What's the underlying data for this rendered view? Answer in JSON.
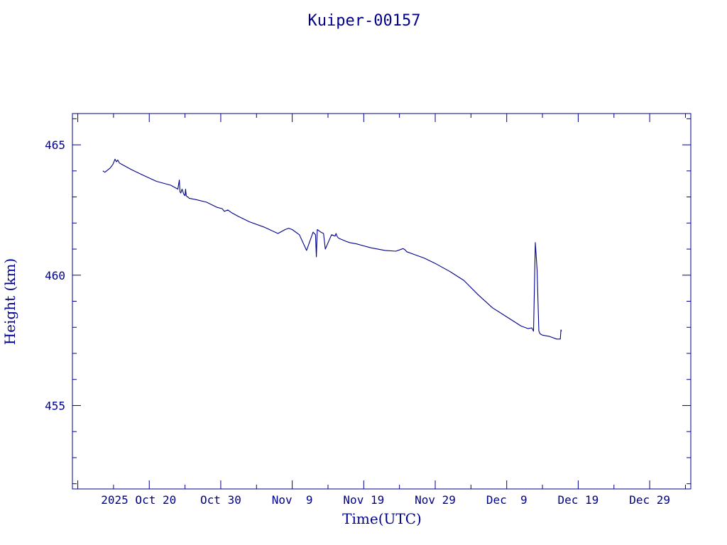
{
  "chart_data": {
    "type": "line",
    "title": "Kuiper-00157",
    "xlabel": "Time(UTC)",
    "ylabel": "Height (km)",
    "color": "#00008b",
    "xlim": [
      "2025-10-09T06:00",
      "2026-01-03T18:00"
    ],
    "ylim": [
      451.8,
      466.2
    ],
    "yticks_major": [
      455,
      460,
      465
    ],
    "ytick_labels": [
      "455",
      "460",
      "465"
    ],
    "xticks_major": [
      "2025-10-20",
      "2025-10-30",
      "2025-11-09",
      "2025-11-19",
      "2025-11-29",
      "2025-12-09",
      "2025-12-19",
      "2025-12-29"
    ],
    "xtick_labels": [
      "2025 Oct 20",
      "Oct 30",
      "Nov  9",
      "Nov 19",
      "Nov 29",
      "Dec  9",
      "Dec 19",
      "Dec 29"
    ],
    "grid": false,
    "legend": "none",
    "series": [
      {
        "x": [
          "2025-10-13T12:00",
          "2025-10-13T19:00",
          "2025-10-14T12:00",
          "2025-10-14T22:00",
          "2025-10-15T05:00",
          "2025-10-15T10:00",
          "2025-10-15T14:00",
          "2025-10-15T20:00",
          "2025-10-16T04:00",
          "2025-10-17T12:00",
          "2025-10-19T00:00",
          "2025-10-21T00:00",
          "2025-10-23T00:00",
          "2025-10-24T00:00",
          "2025-10-24T05:00",
          "2025-10-24T07:00",
          "2025-10-24T10:00",
          "2025-10-24T14:00",
          "2025-10-24T20:00",
          "2025-10-25T00:00",
          "2025-10-25T02:00",
          "2025-10-25T04:00",
          "2025-10-25T08:00",
          "2025-10-25T09:00",
          "2025-10-25T10:00",
          "2025-10-25T14:00",
          "2025-10-26T12:00",
          "2025-10-28T00:00",
          "2025-10-29T12:00",
          "2025-10-30T05:00",
          "2025-10-30T12:00",
          "2025-10-31T00:00",
          "2025-10-31T12:00",
          "2025-11-01T12:00",
          "2025-11-03T00:00",
          "2025-11-05T00:00",
          "2025-11-07T00:00",
          "2025-11-08T00:00",
          "2025-11-08T12:00",
          "2025-11-09T00:00",
          "2025-11-10T00:00",
          "2025-11-11T00:00",
          "2025-11-11T22:00",
          "2025-11-12T06:00",
          "2025-11-12T09:00",
          "2025-11-12T12:00",
          "2025-11-12T18:00",
          "2025-11-13T00:00",
          "2025-11-13T09:00",
          "2025-11-13T15:00",
          "2025-11-14T12:00",
          "2025-11-15T00:00",
          "2025-11-15T03:00",
          "2025-11-15T06:00",
          "2025-11-15T09:00",
          "2025-11-15T12:00",
          "2025-11-15T15:00",
          "2025-11-16T12:00",
          "2025-11-17T00:00",
          "2025-11-18T00:00",
          "2025-11-20T00:00",
          "2025-11-22T00:00",
          "2025-11-23T12:00",
          "2025-11-24T12:00",
          "2025-11-24T15:00",
          "2025-11-24T21:00",
          "2025-11-25T00:00",
          "2025-11-26T00:00",
          "2025-11-27T12:00",
          "2025-11-29T00:00",
          "2025-12-01T00:00",
          "2025-12-03T00:00",
          "2025-12-05T00:00",
          "2025-12-07T00:00",
          "2025-12-09T00:00",
          "2025-12-11T00:00",
          "2025-12-12T00:00",
          "2025-12-12T12:00",
          "2025-12-12T18:00",
          "2025-12-13T00:00",
          "2025-12-13T06:00",
          "2025-12-13T12:00",
          "2025-12-13T16:00",
          "2025-12-14T00:00",
          "2025-12-15T00:00",
          "2025-12-16T00:00",
          "2025-12-16T12:00",
          "2025-12-16T14:00",
          "2025-12-16T16:00"
        ],
        "y": [
          464.0,
          463.95,
          464.1,
          464.25,
          464.45,
          464.35,
          464.42,
          464.3,
          464.25,
          464.05,
          463.85,
          463.6,
          463.45,
          463.3,
          463.65,
          463.2,
          463.15,
          463.3,
          463.1,
          463.05,
          463.3,
          463.05,
          463.0,
          463.0,
          463.0,
          462.95,
          462.9,
          462.8,
          462.6,
          462.55,
          462.45,
          462.5,
          462.4,
          462.25,
          462.05,
          461.85,
          461.6,
          461.75,
          461.8,
          461.75,
          461.55,
          460.95,
          461.65,
          461.55,
          460.7,
          461.75,
          461.7,
          461.65,
          461.6,
          461.0,
          461.55,
          461.5,
          461.6,
          461.5,
          461.45,
          461.42,
          461.4,
          461.3,
          461.25,
          461.2,
          461.05,
          460.95,
          460.92,
          461.02,
          461.0,
          460.95,
          460.9,
          460.8,
          460.65,
          460.45,
          460.15,
          459.8,
          459.25,
          458.75,
          458.4,
          458.05,
          457.95,
          457.98,
          457.85,
          461.25,
          460.2,
          457.85,
          457.75,
          457.7,
          457.65,
          457.55,
          457.55,
          457.9,
          457.85
        ]
      }
    ]
  }
}
